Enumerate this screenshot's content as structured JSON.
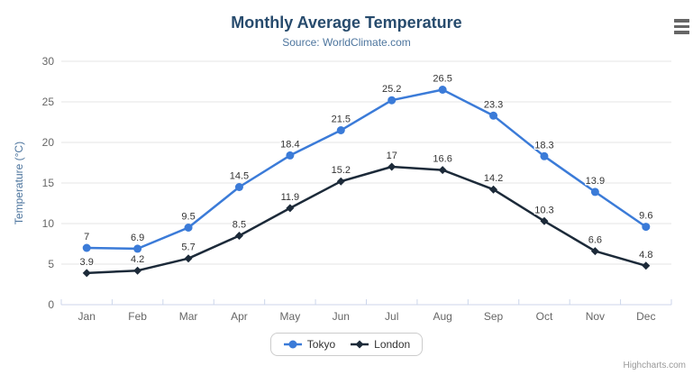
{
  "header": {
    "title": "Monthly Average Temperature",
    "subtitle": "Source: WorldClimate.com"
  },
  "toolbar": {
    "menu_icon": "hamburger-menu-icon"
  },
  "credits": {
    "label": "Highcharts.com"
  },
  "colors": {
    "title": "#274b6d",
    "subtitle": "#4d759e",
    "axis_title": "#4d759e",
    "axis_labels": "#666666",
    "data_labels": "#333333",
    "gridline": "#e6e6e6",
    "axis_line": "#ccd6eb",
    "tokyo": "#3b7bd8",
    "london": "#1c2a39"
  },
  "chart_data": {
    "type": "line",
    "title": "Monthly Average Temperature",
    "subtitle": "Source: WorldClimate.com",
    "xlabel": "",
    "ylabel": "Temperature (°C)",
    "categories": [
      "Jan",
      "Feb",
      "Mar",
      "Apr",
      "May",
      "Jun",
      "Jul",
      "Aug",
      "Sep",
      "Oct",
      "Nov",
      "Dec"
    ],
    "series": [
      {
        "name": "Tokyo",
        "color": "#3b7bd8",
        "marker": "circle",
        "values": [
          7,
          6.9,
          9.5,
          14.5,
          18.4,
          21.5,
          25.2,
          26.5,
          23.3,
          18.3,
          13.9,
          9.6
        ]
      },
      {
        "name": "London",
        "color": "#1c2a39",
        "marker": "diamond",
        "values": [
          3.9,
          4.2,
          5.7,
          8.5,
          11.9,
          15.2,
          17,
          16.6,
          14.2,
          10.3,
          6.6,
          4.8
        ]
      }
    ],
    "ylim": [
      0,
      30
    ],
    "ytick_step": 5,
    "grid": true,
    "data_labels": true,
    "legend_position": "bottom-center"
  }
}
